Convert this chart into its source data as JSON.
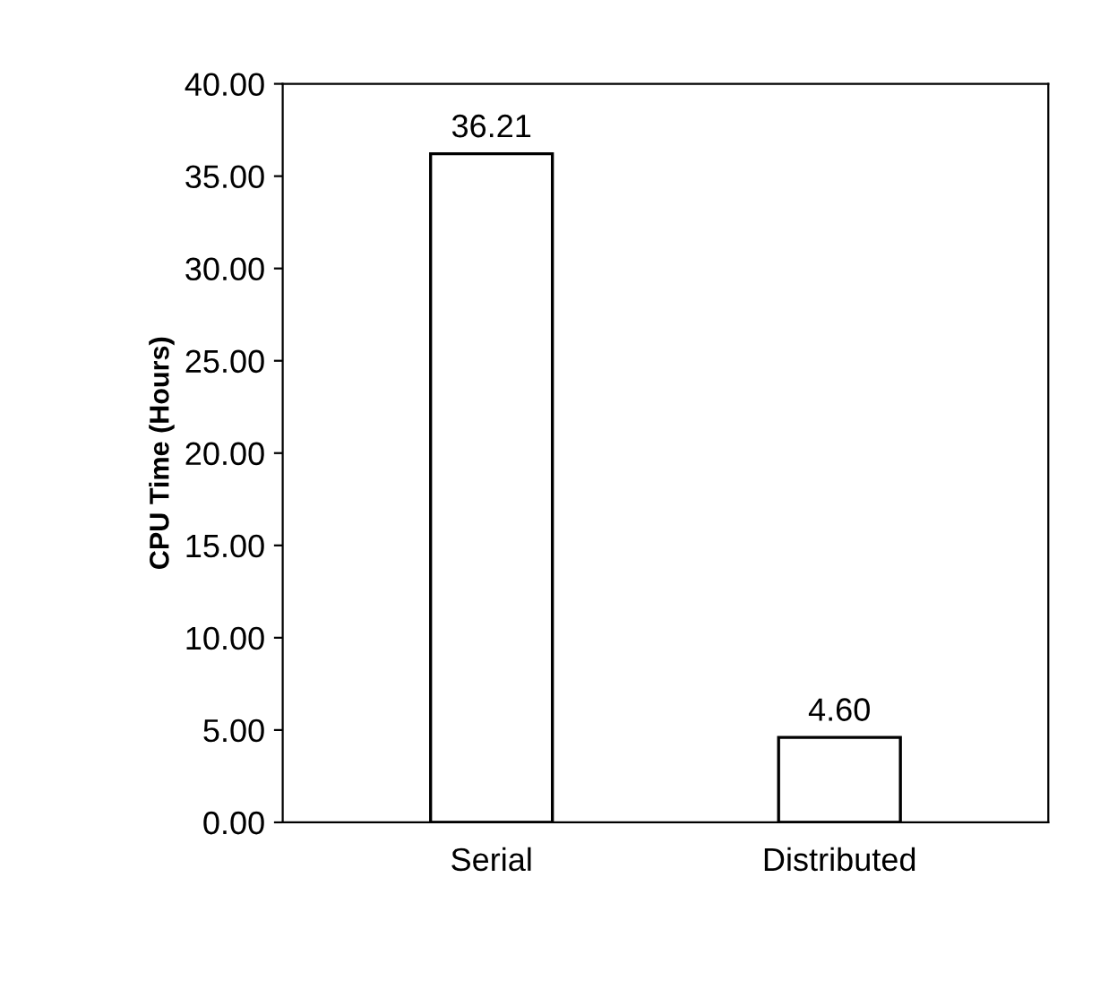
{
  "chart_data": {
    "type": "bar",
    "ylabel": "CPU Time (Hours)",
    "categories": [
      "Serial",
      "Distributed"
    ],
    "values": [
      36.21,
      4.6
    ],
    "value_labels": [
      "36.21",
      "4.60"
    ],
    "color": "#ffffff",
    "ylim": [
      0,
      40
    ],
    "yticks": [
      {
        "value": 0,
        "label": "0.00"
      },
      {
        "value": 5,
        "label": "5.00"
      },
      {
        "value": 10,
        "label": "10.00"
      },
      {
        "value": 15,
        "label": "15.00"
      },
      {
        "value": 20,
        "label": "20.00"
      },
      {
        "value": 25,
        "label": "25.00"
      },
      {
        "value": 30,
        "label": "30.00"
      },
      {
        "value": 35,
        "label": "35.00"
      },
      {
        "value": 40,
        "label": "40.00"
      }
    ],
    "grid": false,
    "legend": false
  }
}
